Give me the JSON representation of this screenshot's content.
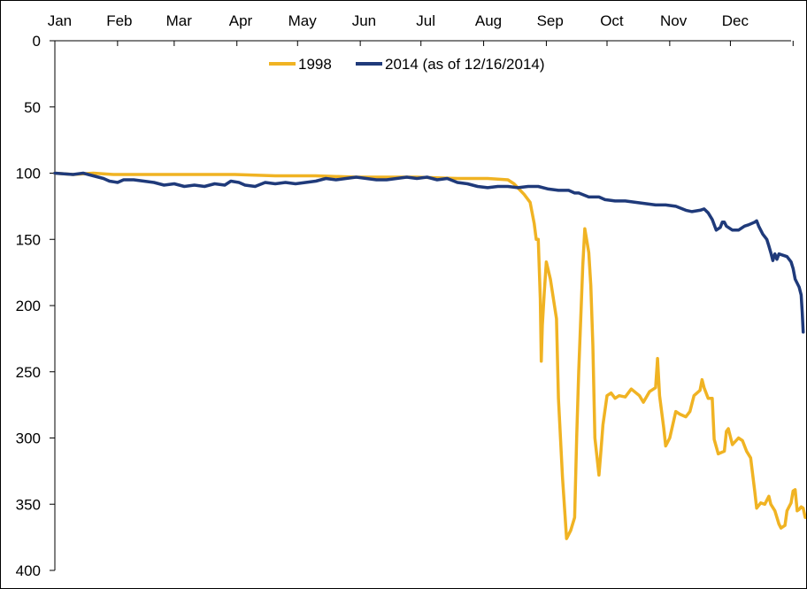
{
  "chart_data": {
    "type": "line",
    "title": "",
    "xlabel": "",
    "ylabel": "",
    "x_axis_position": "top",
    "y_axis_inverted": true,
    "ylim": [
      0,
      400
    ],
    "y_ticks": [
      "0",
      "50",
      "100",
      "150",
      "200",
      "250",
      "300",
      "350",
      "400"
    ],
    "x_ticks": [
      "Jan",
      "Feb",
      "Mar",
      "Apr",
      "May",
      "Jun",
      "Jul",
      "Aug",
      "Sep",
      "Oct",
      "Nov",
      "Dec"
    ],
    "x_unit": "day of year",
    "xlim": [
      1,
      365
    ],
    "legend_position": "top-center",
    "series": [
      {
        "name": "1998",
        "color": "#F0B323",
        "points": [
          [
            1,
            100
          ],
          [
            10,
            101
          ],
          [
            20,
            100
          ],
          [
            30,
            101
          ],
          [
            45,
            101
          ],
          [
            60,
            101
          ],
          [
            75,
            101
          ],
          [
            90,
            101
          ],
          [
            110,
            102
          ],
          [
            130,
            102
          ],
          [
            150,
            103
          ],
          [
            165,
            103
          ],
          [
            180,
            103
          ],
          [
            200,
            104
          ],
          [
            215,
            104
          ],
          [
            225,
            105
          ],
          [
            228,
            108
          ],
          [
            233,
            116
          ],
          [
            236,
            122
          ],
          [
            238,
            138
          ],
          [
            239,
            150
          ],
          [
            240,
            150
          ],
          [
            241,
            195
          ],
          [
            241.5,
            242
          ],
          [
            242,
            215
          ],
          [
            243,
            190
          ],
          [
            244,
            167
          ],
          [
            246,
            180
          ],
          [
            248,
            200
          ],
          [
            249,
            210
          ],
          [
            250,
            270
          ],
          [
            252,
            330
          ],
          [
            254,
            376
          ],
          [
            256,
            370
          ],
          [
            258,
            360
          ],
          [
            259,
            300
          ],
          [
            260,
            250
          ],
          [
            261,
            210
          ],
          [
            262,
            170
          ],
          [
            263,
            142
          ],
          [
            265,
            160
          ],
          [
            266,
            185
          ],
          [
            267,
            230
          ],
          [
            268,
            300
          ],
          [
            270,
            328
          ],
          [
            271,
            310
          ],
          [
            272,
            290
          ],
          [
            274,
            268
          ],
          [
            276,
            266
          ],
          [
            278,
            270
          ],
          [
            280,
            268
          ],
          [
            283,
            269
          ],
          [
            286,
            263
          ],
          [
            290,
            268
          ],
          [
            292,
            273
          ],
          [
            295,
            265
          ],
          [
            298,
            262
          ],
          [
            299,
            240
          ],
          [
            300,
            268
          ],
          [
            302,
            292
          ],
          [
            303,
            306
          ],
          [
            305,
            300
          ],
          [
            308,
            280
          ],
          [
            310,
            282
          ],
          [
            313,
            284
          ],
          [
            315,
            280
          ],
          [
            317,
            268
          ],
          [
            320,
            264
          ],
          [
            321,
            256
          ],
          [
            322,
            262
          ],
          [
            324,
            270
          ],
          [
            326,
            270
          ],
          [
            327,
            301
          ],
          [
            329,
            312
          ],
          [
            332,
            310
          ],
          [
            333,
            295
          ],
          [
            334,
            293
          ],
          [
            336,
            305
          ],
          [
            339,
            300
          ],
          [
            341,
            302
          ],
          [
            343,
            310
          ],
          [
            345,
            315
          ],
          [
            347,
            340
          ],
          [
            348,
            353
          ],
          [
            350,
            349
          ],
          [
            352,
            350
          ],
          [
            354,
            344
          ],
          [
            355,
            350
          ],
          [
            357,
            355
          ],
          [
            359,
            365
          ],
          [
            360,
            368
          ],
          [
            362,
            366
          ],
          [
            363,
            355
          ],
          [
            365,
            349
          ],
          [
            366,
            340
          ],
          [
            367,
            339
          ],
          [
            368,
            355
          ],
          [
            369,
            354
          ],
          [
            370,
            352
          ],
          [
            371,
            353
          ],
          [
            372,
            360
          ]
        ]
      },
      {
        "name": "2014 (as of 12/16/2014)",
        "color": "#1F3A7A",
        "points": [
          [
            1,
            100
          ],
          [
            10,
            101
          ],
          [
            15,
            100
          ],
          [
            20,
            102
          ],
          [
            25,
            104
          ],
          [
            28,
            106
          ],
          [
            32,
            107
          ],
          [
            35,
            105
          ],
          [
            40,
            105
          ],
          [
            45,
            106
          ],
          [
            50,
            107
          ],
          [
            55,
            109
          ],
          [
            60,
            108
          ],
          [
            65,
            110
          ],
          [
            70,
            109
          ],
          [
            75,
            110
          ],
          [
            80,
            108
          ],
          [
            85,
            109
          ],
          [
            88,
            106
          ],
          [
            92,
            107
          ],
          [
            95,
            109
          ],
          [
            100,
            110
          ],
          [
            105,
            107
          ],
          [
            110,
            108
          ],
          [
            115,
            107
          ],
          [
            120,
            108
          ],
          [
            125,
            107
          ],
          [
            130,
            106
          ],
          [
            135,
            104
          ],
          [
            140,
            105
          ],
          [
            145,
            104
          ],
          [
            150,
            103
          ],
          [
            155,
            104
          ],
          [
            160,
            105
          ],
          [
            165,
            105
          ],
          [
            170,
            104
          ],
          [
            175,
            103
          ],
          [
            180,
            104
          ],
          [
            185,
            103
          ],
          [
            190,
            105
          ],
          [
            195,
            104
          ],
          [
            200,
            107
          ],
          [
            205,
            108
          ],
          [
            210,
            110
          ],
          [
            215,
            111
          ],
          [
            220,
            110
          ],
          [
            225,
            110
          ],
          [
            230,
            111
          ],
          [
            235,
            110
          ],
          [
            240,
            110
          ],
          [
            245,
            112
          ],
          [
            250,
            113
          ],
          [
            255,
            113
          ],
          [
            258,
            115
          ],
          [
            260,
            115
          ],
          [
            265,
            118
          ],
          [
            270,
            118
          ],
          [
            273,
            120
          ],
          [
            278,
            121
          ],
          [
            283,
            121
          ],
          [
            288,
            122
          ],
          [
            293,
            123
          ],
          [
            298,
            124
          ],
          [
            303,
            124
          ],
          [
            308,
            125
          ],
          [
            313,
            128
          ],
          [
            316,
            129
          ],
          [
            320,
            128
          ],
          [
            322,
            127
          ],
          [
            324,
            130
          ],
          [
            326,
            135
          ],
          [
            328,
            143
          ],
          [
            330,
            141
          ],
          [
            331,
            137
          ],
          [
            332,
            137
          ],
          [
            333,
            140
          ],
          [
            336,
            143
          ],
          [
            339,
            143
          ],
          [
            342,
            140
          ],
          [
            344,
            139
          ],
          [
            347,
            137
          ],
          [
            348,
            136
          ],
          [
            349,
            140
          ],
          [
            351,
            146
          ],
          [
            353,
            150
          ],
          [
            354,
            155
          ],
          [
            355,
            160
          ],
          [
            356,
            166
          ],
          [
            357,
            161
          ],
          [
            358,
            165
          ],
          [
            359,
            161
          ],
          [
            361,
            162
          ],
          [
            363,
            163
          ],
          [
            365,
            167
          ],
          [
            366,
            172
          ],
          [
            367,
            180
          ],
          [
            369,
            186
          ],
          [
            370,
            192
          ],
          [
            370.5,
            205
          ],
          [
            371,
            220
          ]
        ]
      }
    ]
  }
}
